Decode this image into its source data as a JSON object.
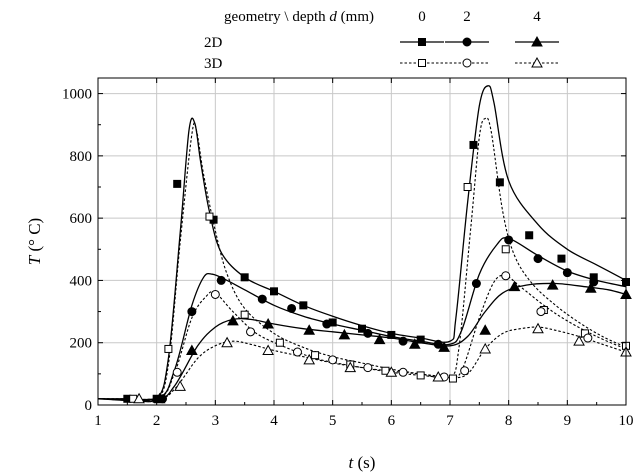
{
  "chart_data": {
    "type": "line",
    "xlabel": "t (s)",
    "ylabel": "T (° C)",
    "xlim": [
      1,
      10
    ],
    "ylim": [
      0,
      1050
    ],
    "x_ticks": [
      1,
      2,
      3,
      4,
      5,
      6,
      7,
      8,
      9,
      10
    ],
    "y_ticks": [
      0,
      200,
      400,
      600,
      800,
      1000
    ],
    "grid": true,
    "legend": {
      "placement": "top",
      "header": "geometry \\ depth d (mm)",
      "columns": [
        "0",
        "2",
        "4"
      ],
      "rows": [
        "2D",
        "3D"
      ]
    },
    "series": [
      {
        "geometry": "2D",
        "depth": "0",
        "marker": "square",
        "filled": true,
        "line": "solid",
        "points": [
          [
            1.0,
            20
          ],
          [
            1.5,
            20
          ],
          [
            2.0,
            20
          ],
          [
            2.2,
            150
          ],
          [
            2.4,
            550
          ],
          [
            2.55,
            880
          ],
          [
            2.65,
            905
          ],
          [
            2.75,
            780
          ],
          [
            2.9,
            620
          ],
          [
            3.1,
            490
          ],
          [
            3.5,
            410
          ],
          [
            4.0,
            365
          ],
          [
            4.5,
            320
          ],
          [
            5.0,
            285
          ],
          [
            5.5,
            255
          ],
          [
            6.0,
            230
          ],
          [
            6.5,
            215
          ],
          [
            7.0,
            205
          ],
          [
            7.1,
            280
          ],
          [
            7.3,
            650
          ],
          [
            7.5,
            960
          ],
          [
            7.65,
            1025
          ],
          [
            7.75,
            970
          ],
          [
            8.0,
            720
          ],
          [
            8.5,
            580
          ],
          [
            9.0,
            500
          ],
          [
            9.5,
            450
          ],
          [
            10.0,
            400
          ]
        ],
        "marker_points": [
          [
            1.5,
            20
          ],
          [
            2.0,
            20
          ],
          [
            2.35,
            710
          ],
          [
            2.97,
            595
          ],
          [
            3.5,
            410
          ],
          [
            4.0,
            365
          ],
          [
            4.5,
            320
          ],
          [
            5.0,
            265
          ],
          [
            5.5,
            245
          ],
          [
            6.0,
            225
          ],
          [
            6.5,
            210
          ],
          [
            7.4,
            835
          ],
          [
            7.85,
            715
          ],
          [
            8.35,
            545
          ],
          [
            8.9,
            470
          ],
          [
            9.45,
            410
          ],
          [
            10.0,
            395
          ]
        ]
      },
      {
        "geometry": "2D",
        "depth": "2",
        "marker": "circle",
        "filled": true,
        "line": "solid",
        "points": [
          [
            1.0,
            20
          ],
          [
            2.0,
            20
          ],
          [
            2.3,
            110
          ],
          [
            2.6,
            320
          ],
          [
            2.8,
            410
          ],
          [
            2.95,
            420
          ],
          [
            3.2,
            400
          ],
          [
            3.5,
            370
          ],
          [
            4.0,
            320
          ],
          [
            4.5,
            285
          ],
          [
            5.0,
            260
          ],
          [
            5.5,
            240
          ],
          [
            6.0,
            220
          ],
          [
            6.5,
            205
          ],
          [
            7.0,
            195
          ],
          [
            7.2,
            240
          ],
          [
            7.5,
            420
          ],
          [
            7.8,
            515
          ],
          [
            8.0,
            535
          ],
          [
            8.5,
            480
          ],
          [
            9.0,
            430
          ],
          [
            9.5,
            400
          ],
          [
            10.0,
            380
          ]
        ],
        "marker_points": [
          [
            2.1,
            20
          ],
          [
            2.6,
            300
          ],
          [
            3.1,
            400
          ],
          [
            3.8,
            340
          ],
          [
            4.3,
            310
          ],
          [
            4.9,
            260
          ],
          [
            5.6,
            230
          ],
          [
            6.2,
            205
          ],
          [
            6.8,
            195
          ],
          [
            7.45,
            390
          ],
          [
            8.0,
            530
          ],
          [
            8.5,
            470
          ],
          [
            9.0,
            425
          ],
          [
            9.45,
            395
          ]
        ]
      },
      {
        "geometry": "2D",
        "depth": "4",
        "marker": "triangle",
        "filled": true,
        "line": "solid",
        "points": [
          [
            1.0,
            20
          ],
          [
            2.0,
            20
          ],
          [
            2.3,
            60
          ],
          [
            2.7,
            190
          ],
          [
            3.0,
            250
          ],
          [
            3.3,
            275
          ],
          [
            3.6,
            275
          ],
          [
            4.0,
            260
          ],
          [
            4.5,
            245
          ],
          [
            5.0,
            235
          ],
          [
            5.5,
            225
          ],
          [
            6.0,
            215
          ],
          [
            6.5,
            200
          ],
          [
            7.0,
            190
          ],
          [
            7.3,
            220
          ],
          [
            7.6,
            300
          ],
          [
            7.9,
            360
          ],
          [
            8.3,
            385
          ],
          [
            8.8,
            390
          ],
          [
            9.3,
            380
          ],
          [
            9.7,
            370
          ],
          [
            10.0,
            355
          ]
        ],
        "marker_points": [
          [
            2.05,
            20
          ],
          [
            2.6,
            175
          ],
          [
            3.3,
            270
          ],
          [
            3.9,
            260
          ],
          [
            4.6,
            240
          ],
          [
            5.2,
            225
          ],
          [
            5.8,
            210
          ],
          [
            6.4,
            195
          ],
          [
            6.9,
            185
          ],
          [
            7.6,
            240
          ],
          [
            8.1,
            380
          ],
          [
            8.75,
            385
          ],
          [
            9.4,
            375
          ],
          [
            10.0,
            355
          ]
        ]
      },
      {
        "geometry": "3D",
        "depth": "0",
        "marker": "square",
        "filled": false,
        "line": "dotted",
        "points": [
          [
            1.0,
            20
          ],
          [
            1.5,
            20
          ],
          [
            2.0,
            20
          ],
          [
            2.2,
            130
          ],
          [
            2.4,
            520
          ],
          [
            2.6,
            870
          ],
          [
            2.68,
            880
          ],
          [
            2.8,
            740
          ],
          [
            3.0,
            560
          ],
          [
            3.2,
            420
          ],
          [
            3.5,
            310
          ],
          [
            4.0,
            230
          ],
          [
            4.5,
            185
          ],
          [
            5.0,
            155
          ],
          [
            5.5,
            135
          ],
          [
            6.0,
            115
          ],
          [
            6.5,
            100
          ],
          [
            7.0,
            90
          ],
          [
            7.15,
            180
          ],
          [
            7.35,
            560
          ],
          [
            7.5,
            860
          ],
          [
            7.6,
            920
          ],
          [
            7.7,
            880
          ],
          [
            7.9,
            620
          ],
          [
            8.1,
            480
          ],
          [
            8.4,
            390
          ],
          [
            8.8,
            320
          ],
          [
            9.2,
            265
          ],
          [
            9.6,
            220
          ],
          [
            10.0,
            185
          ]
        ],
        "marker_points": [
          [
            1.6,
            20
          ],
          [
            2.2,
            180
          ],
          [
            2.9,
            605
          ],
          [
            3.5,
            290
          ],
          [
            4.1,
            200
          ],
          [
            4.7,
            160
          ],
          [
            5.3,
            130
          ],
          [
            5.9,
            110
          ],
          [
            6.5,
            95
          ],
          [
            7.05,
            85
          ],
          [
            7.3,
            700
          ],
          [
            7.95,
            500
          ],
          [
            8.6,
            305
          ],
          [
            9.3,
            230
          ],
          [
            10.0,
            190
          ]
        ]
      },
      {
        "geometry": "3D",
        "depth": "2",
        "marker": "circle",
        "filled": false,
        "line": "dotted",
        "points": [
          [
            1.0,
            20
          ],
          [
            2.0,
            20
          ],
          [
            2.3,
            100
          ],
          [
            2.6,
            280
          ],
          [
            2.85,
            350
          ],
          [
            3.0,
            360
          ],
          [
            3.3,
            300
          ],
          [
            3.7,
            230
          ],
          [
            4.2,
            185
          ],
          [
            4.7,
            150
          ],
          [
            5.2,
            130
          ],
          [
            5.7,
            115
          ],
          [
            6.2,
            105
          ],
          [
            6.7,
            95
          ],
          [
            7.0,
            90
          ],
          [
            7.2,
            110
          ],
          [
            7.5,
            280
          ],
          [
            7.75,
            395
          ],
          [
            7.95,
            415
          ],
          [
            8.2,
            380
          ],
          [
            8.6,
            320
          ],
          [
            9.0,
            270
          ],
          [
            9.5,
            220
          ],
          [
            10.0,
            180
          ]
        ],
        "marker_points": [
          [
            2.35,
            105
          ],
          [
            3.0,
            355
          ],
          [
            3.6,
            235
          ],
          [
            4.4,
            170
          ],
          [
            5.0,
            145
          ],
          [
            5.6,
            120
          ],
          [
            6.2,
            105
          ],
          [
            6.9,
            90
          ],
          [
            7.25,
            110
          ],
          [
            7.95,
            415
          ],
          [
            8.55,
            300
          ],
          [
            9.35,
            215
          ]
        ]
      },
      {
        "geometry": "3D",
        "depth": "4",
        "marker": "triangle",
        "filled": false,
        "line": "dotted",
        "points": [
          [
            1.0,
            20
          ],
          [
            2.0,
            20
          ],
          [
            2.3,
            50
          ],
          [
            2.7,
            150
          ],
          [
            3.0,
            190
          ],
          [
            3.3,
            205
          ],
          [
            3.6,
            195
          ],
          [
            4.0,
            175
          ],
          [
            4.5,
            155
          ],
          [
            5.0,
            135
          ],
          [
            5.5,
            120
          ],
          [
            6.0,
            105
          ],
          [
            6.5,
            95
          ],
          [
            7.0,
            88
          ],
          [
            7.3,
            100
          ],
          [
            7.6,
            180
          ],
          [
            7.9,
            230
          ],
          [
            8.2,
            245
          ],
          [
            8.5,
            250
          ],
          [
            8.8,
            240
          ],
          [
            9.2,
            220
          ],
          [
            9.6,
            195
          ],
          [
            10.0,
            170
          ]
        ],
        "marker_points": [
          [
            1.7,
            20
          ],
          [
            2.4,
            60
          ],
          [
            3.2,
            200
          ],
          [
            3.9,
            175
          ],
          [
            4.6,
            145
          ],
          [
            5.3,
            120
          ],
          [
            6.0,
            105
          ],
          [
            6.8,
            90
          ],
          [
            7.6,
            180
          ],
          [
            8.5,
            245
          ],
          [
            9.2,
            205
          ],
          [
            10.0,
            170
          ]
        ]
      }
    ]
  }
}
